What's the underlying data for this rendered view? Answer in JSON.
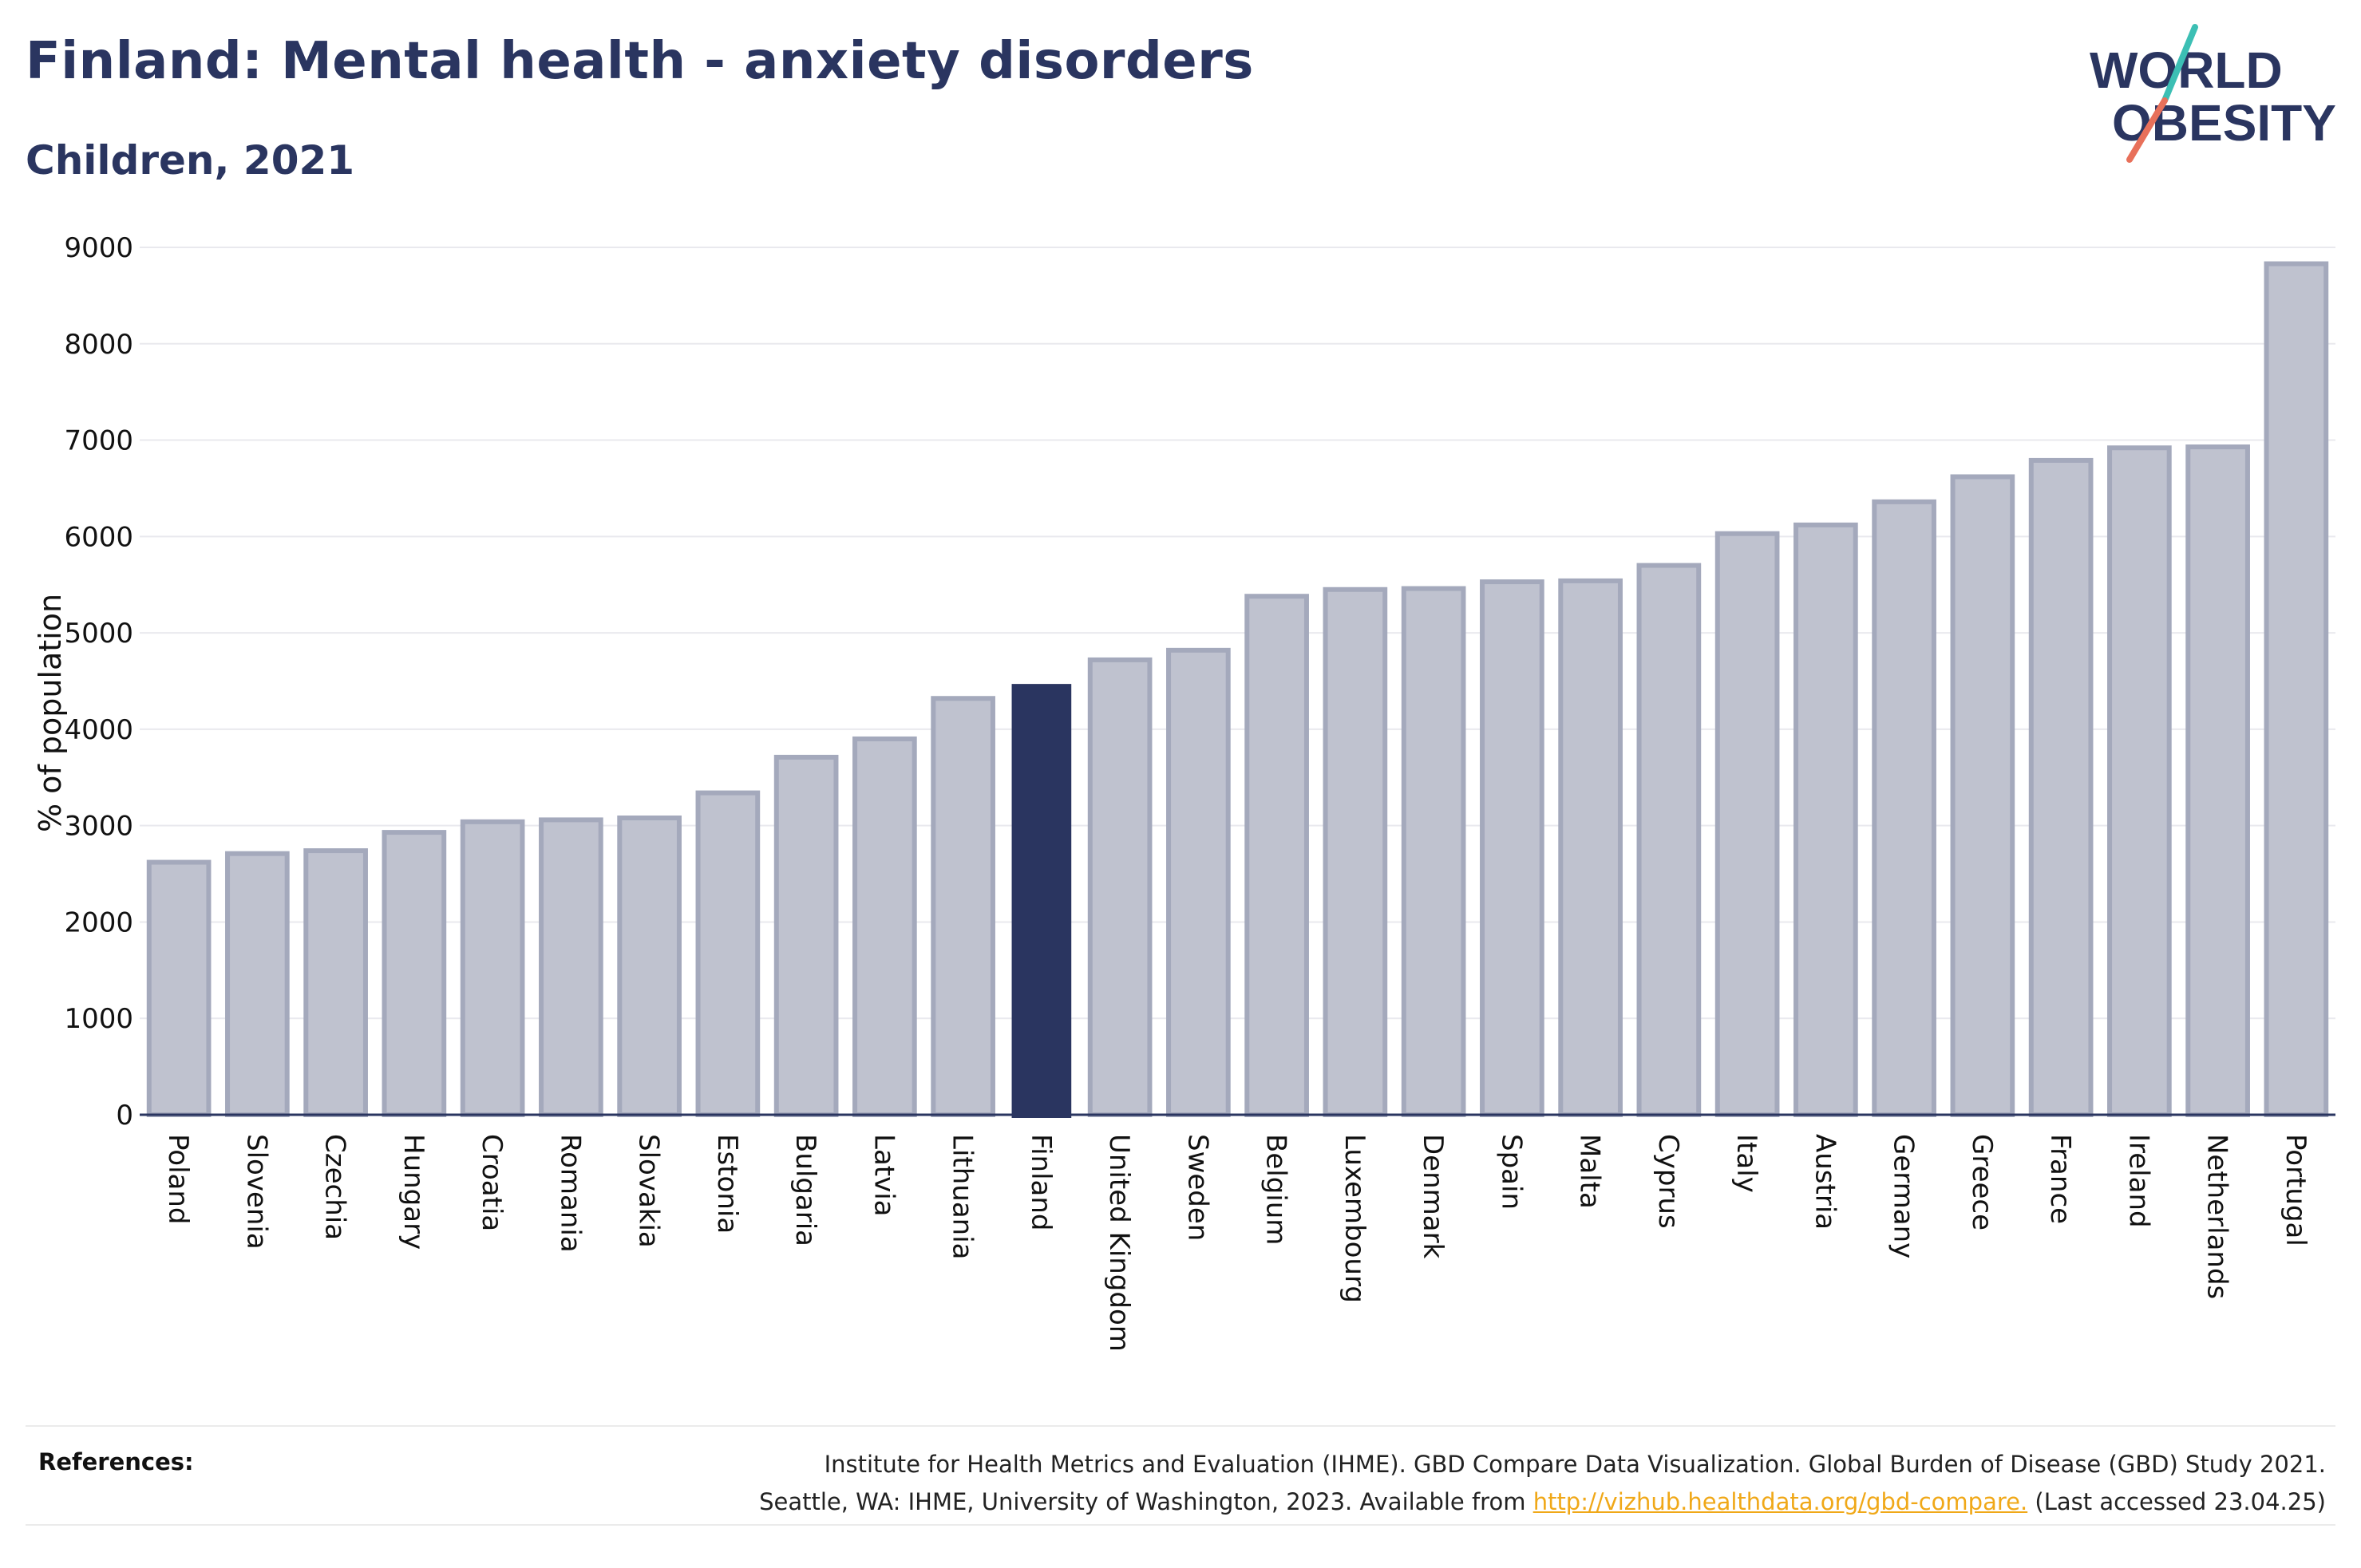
{
  "header": {
    "title": "Finland: Mental health - anxiety disorders",
    "subtitle": "Children, 2021"
  },
  "logo": {
    "line1": "WORLD",
    "line2": "OBESITY"
  },
  "colors": {
    "highlight_bar": "#2a3560",
    "other_bar": "#bfc2cf",
    "other_bar_border": "#a4a9bc",
    "text": "#2a3560",
    "logo_teal": "#3cbfb4",
    "logo_coral": "#e8705a",
    "link": "#f0a818"
  },
  "chart_data": {
    "type": "bar",
    "title": "Finland: Mental health - anxiety disorders",
    "subtitle": "Children, 2021",
    "ylabel": "% of population",
    "xlabel": "",
    "ylim": [
      0,
      9000
    ],
    "yticks": [
      0,
      1000,
      2000,
      3000,
      4000,
      5000,
      6000,
      7000,
      8000,
      9000
    ],
    "grid": true,
    "highlight": "Finland",
    "categories": [
      "Poland",
      "Slovenia",
      "Czechia",
      "Hungary",
      "Croatia",
      "Romania",
      "Slovakia",
      "Estonia",
      "Bulgaria",
      "Latvia",
      "Lithuania",
      "Finland",
      "United Kingdom",
      "Sweden",
      "Belgium",
      "Luxembourg",
      "Denmark",
      "Spain",
      "Malta",
      "Cyprus",
      "Italy",
      "Austria",
      "Germany",
      "Greece",
      "France",
      "Ireland",
      "Netherlands",
      "Portugal"
    ],
    "values": [
      2620,
      2710,
      2740,
      2930,
      3040,
      3060,
      3080,
      3340,
      3710,
      3900,
      4320,
      4470,
      4720,
      4820,
      5380,
      5450,
      5460,
      5530,
      5540,
      5700,
      6030,
      6120,
      6360,
      6620,
      6790,
      6920,
      6930,
      8830
    ]
  },
  "references": {
    "label": "References:",
    "line1": "Institute for Health Metrics and Evaluation (IHME). GBD Compare Data Visualization. Global Burden of Disease (GBD) Study 2021.",
    "line2_prefix": "Seattle, WA: IHME, University of Washington, 2023. Available from ",
    "link": "http://vizhub.healthdata.org/gbd-compare.",
    "line2_suffix": " (Last accessed 23.04.25)"
  }
}
